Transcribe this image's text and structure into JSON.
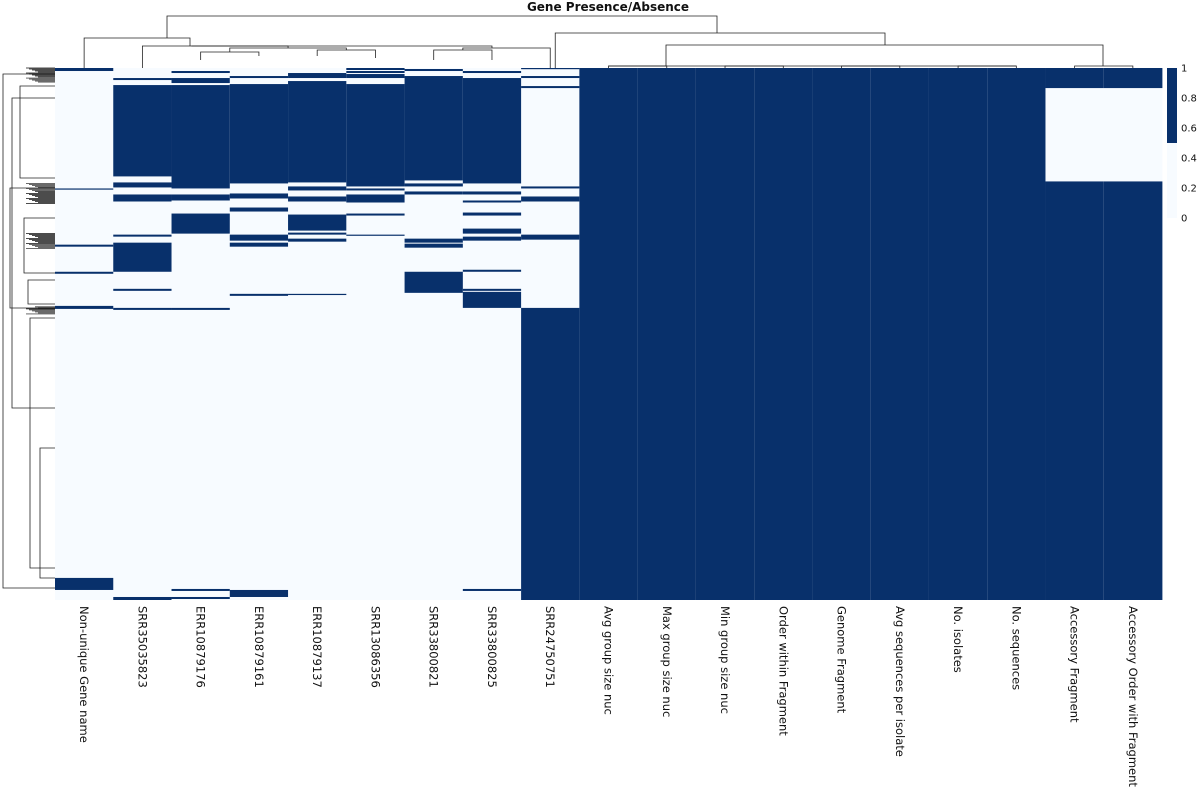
{
  "chart_data": {
    "type": "heatmap",
    "title": "Gene Presence/Absence",
    "columns": [
      "Non-unique Gene name",
      "SRR35035823",
      "ERR10879176",
      "ERR10879161",
      "ERR10879137",
      "SRR13086356",
      "SRR33800821",
      "SRR33800825",
      "SRR24750751",
      "Avg group size nuc",
      "Max group size nuc",
      "Min group size nuc",
      "Order within Fragment",
      "Genome Fragment",
      "Avg sequences per isolate",
      "No. isolates",
      "No. sequences",
      "Accessory Fragment",
      "Accessory Order with Fragment"
    ],
    "row_count": 530,
    "value_range": [
      0,
      1
    ],
    "colorbar": {
      "ticks": [
        "0",
        "0.2",
        "0.4",
        "0.6",
        "0.8",
        "1"
      ],
      "low_color": "#f7fbff",
      "high_color": "#08306b"
    },
    "present_row_spans": {
      "Non-unique Gene name": [
        [
          0,
          3
        ],
        [
          120,
          121
        ],
        [
          176,
          178
        ],
        [
          203,
          205
        ],
        [
          237,
          240
        ],
        [
          508,
          520
        ]
      ],
      "SRR35035823": [
        [
          10,
          12
        ],
        [
          17,
          108
        ],
        [
          114,
          119
        ],
        [
          126,
          133
        ],
        [
          166,
          168
        ],
        [
          174,
          203
        ],
        [
          220,
          222
        ],
        [
          239,
          241
        ],
        [
          527,
          530
        ]
      ],
      "ERR10879176": [
        [
          3,
          5
        ],
        [
          10,
          15
        ],
        [
          17,
          120
        ],
        [
          126,
          132
        ],
        [
          145,
          165
        ],
        [
          239,
          241
        ],
        [
          519,
          521
        ],
        [
          527,
          529
        ]
      ],
      "ERR10879161": [
        [
          8,
          10
        ],
        [
          16,
          115
        ],
        [
          125,
          130
        ],
        [
          139,
          143
        ],
        [
          166,
          172
        ],
        [
          174,
          178
        ],
        [
          225,
          227
        ],
        [
          520,
          527
        ]
      ],
      "ERR10879137": [
        [
          5,
          10
        ],
        [
          13,
          114
        ],
        [
          118,
          122
        ],
        [
          128,
          133
        ],
        [
          146,
          162
        ],
        [
          164,
          166
        ],
        [
          170,
          173
        ],
        [
          225,
          226
        ]
      ],
      "SRR13086356": [
        [
          0,
          2
        ],
        [
          3,
          5
        ],
        [
          6,
          10
        ],
        [
          16,
          118
        ],
        [
          120,
          122
        ],
        [
          126,
          134
        ],
        [
          145,
          147
        ],
        [
          166,
          167
        ]
      ],
      "SRR33800821": [
        [
          1,
          3
        ],
        [
          8,
          112
        ],
        [
          115,
          118
        ],
        [
          123,
          126
        ],
        [
          170,
          174
        ],
        [
          175,
          179
        ],
        [
          203,
          224
        ]
      ],
      "SRR33800825": [
        [
          3,
          5
        ],
        [
          10,
          115
        ],
        [
          123,
          126
        ],
        [
          132,
          134
        ],
        [
          144,
          147
        ],
        [
          160,
          165
        ],
        [
          168,
          172
        ],
        [
          201,
          203
        ],
        [
          220,
          222
        ],
        [
          223,
          239
        ],
        [
          519,
          521
        ]
      ],
      "SRR24750751": [
        [
          0,
          1
        ],
        [
          8,
          10
        ],
        [
          18,
          20
        ],
        [
          118,
          120
        ],
        [
          128,
          133
        ],
        [
          166,
          171
        ],
        [
          239,
          530
        ]
      ],
      "Avg group size nuc": [
        [
          0,
          530
        ]
      ],
      "Max group size nuc": [
        [
          0,
          530
        ]
      ],
      "Min group size nuc": [
        [
          0,
          530
        ]
      ],
      "Order within Fragment": [
        [
          0,
          530
        ]
      ],
      "Genome Fragment": [
        [
          0,
          530
        ]
      ],
      "Avg sequences per isolate": [
        [
          0,
          530
        ]
      ],
      "No. isolates": [
        [
          0,
          530
        ]
      ],
      "No. sequences": [
        [
          0,
          530
        ]
      ],
      "Accessory Fragment": [
        [
          0,
          20
        ],
        [
          113,
          530
        ]
      ],
      "Accessory Order with Fragment": [
        [
          0,
          20
        ],
        [
          113,
          530
        ]
      ]
    }
  }
}
